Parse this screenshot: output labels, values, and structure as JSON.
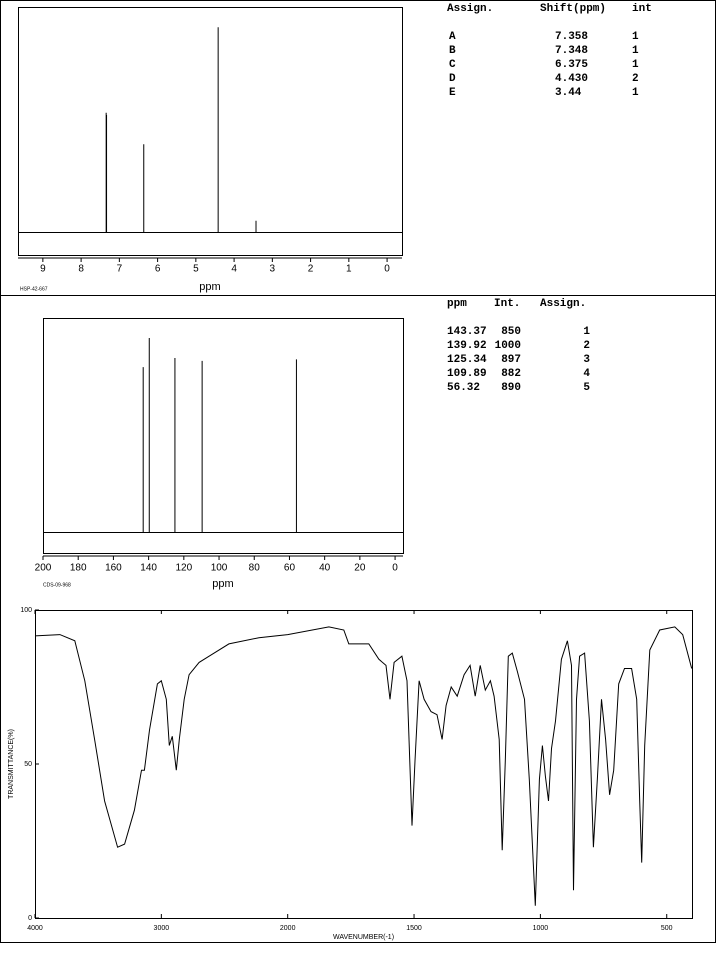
{
  "chart_data": [
    {
      "type": "stick",
      "code": "HSP-42-667",
      "xlabel": "ppm",
      "xlim": [
        9.65,
        -0.39
      ],
      "xticks": [
        9,
        8,
        7,
        6,
        5,
        4,
        3,
        2,
        1,
        0
      ],
      "x": [
        7.358,
        7.348,
        6.375,
        4.43,
        3.44
      ],
      "values": [
        53,
        52,
        39,
        91,
        5
      ],
      "color": "#000000",
      "table": {
        "columns": [
          "Assign.",
          "Shift(ppm)",
          "int"
        ],
        "rows": [
          [
            "A",
            "7.358",
            "1"
          ],
          [
            "B",
            "7.348",
            "1"
          ],
          [
            "C",
            "6.375",
            "1"
          ],
          [
            "D",
            "4.430",
            "2"
          ],
          [
            "E",
            "3.44",
            "1"
          ]
        ]
      }
    },
    {
      "type": "stick",
      "code": "CDS-09-968",
      "xlabel": "ppm",
      "xlim": [
        200,
        -4.5
      ],
      "xticks": [
        200,
        180,
        160,
        140,
        120,
        100,
        80,
        60,
        40,
        20,
        0
      ],
      "x": [
        143.37,
        139.92,
        125.34,
        109.89,
        56.32
      ],
      "values": [
        850,
        1000,
        897,
        882,
        890
      ],
      "color": "#000000",
      "table": {
        "columns": [
          "ppm",
          "Int.",
          "Assign."
        ],
        "rows": [
          [
            "143.37",
            "850",
            "1"
          ],
          [
            "139.92",
            "1000",
            "2"
          ],
          [
            "125.34",
            "897",
            "3"
          ],
          [
            "109.89",
            "882",
            "4"
          ],
          [
            "56.32",
            "890",
            "5"
          ]
        ]
      }
    },
    {
      "type": "line",
      "xlabel": "WAVENUMBER(-1)",
      "ylabel": "TRANSMITTANCE(%)",
      "xlim": [
        4000,
        400
      ],
      "x_scale_break": 2000,
      "xticks": [
        4000,
        3000,
        2000,
        1500,
        1000,
        500
      ],
      "ylim": [
        0,
        100
      ],
      "yticks": [
        0,
        50,
        100
      ],
      "color": "#000000",
      "x": [
        4000,
        3803,
        3685,
        3606,
        3528,
        3449,
        3346,
        3291,
        3213,
        3157,
        3134,
        3094,
        3031,
        3000,
        2961,
        2937,
        2913,
        2882,
        2858,
        2819,
        2780,
        2701,
        2622,
        2465,
        2228,
        2000,
        1837,
        1778,
        1758,
        1679,
        1639,
        1611,
        1595,
        1579,
        1548,
        1528,
        1508,
        1496,
        1480,
        1460,
        1433,
        1409,
        1389,
        1373,
        1353,
        1329,
        1302,
        1278,
        1258,
        1238,
        1218,
        1198,
        1183,
        1163,
        1151,
        1139,
        1127,
        1111,
        1091,
        1063,
        1044,
        1020,
        1004,
        992,
        980,
        968,
        956,
        940,
        917,
        893,
        877,
        869,
        857,
        845,
        825,
        806,
        790,
        774,
        758,
        742,
        726,
        710,
        690,
        667,
        639,
        619,
        607,
        599,
        587,
        567,
        528,
        468,
        437,
        401
      ],
      "values": [
        91.6,
        92,
        90,
        77,
        58,
        38,
        23,
        24,
        35,
        48,
        48,
        61,
        76,
        77,
        71,
        56,
        59,
        48,
        58,
        71,
        79,
        83,
        85,
        89,
        91,
        92,
        94.5,
        93.5,
        89,
        89,
        84,
        82,
        71,
        83,
        85,
        77,
        30,
        51,
        77,
        71,
        67,
        66,
        58,
        69,
        75,
        72,
        79,
        82,
        72,
        82,
        74,
        77,
        72,
        58,
        22,
        51,
        85,
        86,
        80,
        71,
        45,
        4,
        45,
        56,
        46,
        38,
        55,
        64,
        84,
        90,
        82,
        9,
        71,
        85,
        86,
        64,
        23,
        46,
        71,
        58,
        40,
        48,
        76,
        81,
        81,
        71,
        38,
        18,
        56,
        87,
        93.5,
        94.5,
        92,
        81
      ]
    }
  ]
}
